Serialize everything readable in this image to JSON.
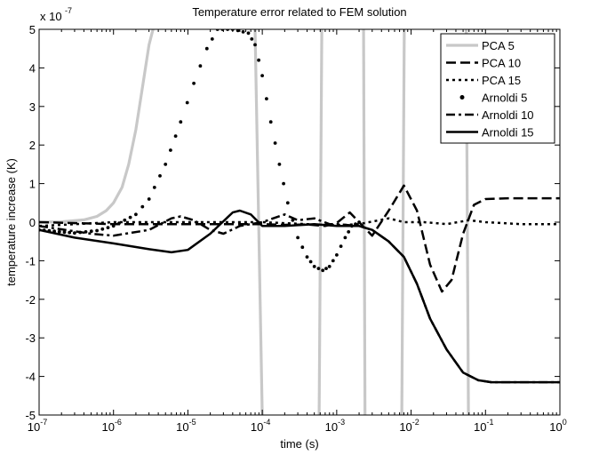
{
  "chart_data": {
    "type": "line",
    "title": "Temperature error related to FEM solution",
    "xlabel": "time (s)",
    "ylabel": "temperature increase (K)",
    "x_scale": "log",
    "xlim": [
      1e-07,
      1
    ],
    "ylim": [
      -5e-07,
      5e-07
    ],
    "y_exponent_label": "x 10",
    "y_exponent": "-7",
    "x_ticks": [
      {
        "base": "10",
        "exp": "-7",
        "value": 1e-07
      },
      {
        "base": "10",
        "exp": "-6",
        "value": 1e-06
      },
      {
        "base": "10",
        "exp": "-5",
        "value": 1e-05
      },
      {
        "base": "10",
        "exp": "-4",
        "value": 0.0001
      },
      {
        "base": "10",
        "exp": "-3",
        "value": 0.001
      },
      {
        "base": "10",
        "exp": "-2",
        "value": 0.01
      },
      {
        "base": "10",
        "exp": "-1",
        "value": 0.1
      },
      {
        "base": "10",
        "exp": "0",
        "value": 1
      }
    ],
    "y_ticks": [
      {
        "label": "5",
        "value": 5e-07
      },
      {
        "label": "4",
        "value": 4e-07
      },
      {
        "label": "3",
        "value": 3e-07
      },
      {
        "label": "2",
        "value": 2e-07
      },
      {
        "label": "1",
        "value": 1e-07
      },
      {
        "label": "0",
        "value": 0
      },
      {
        "label": "-1",
        "value": -1e-07
      },
      {
        "label": "-2",
        "value": -2e-07
      },
      {
        "label": "-3",
        "value": -3e-07
      },
      {
        "label": "-4",
        "value": -4e-07
      },
      {
        "label": "-5",
        "value": -5e-07
      }
    ],
    "grid": false,
    "legend_position": "top-right",
    "series": [
      {
        "name": "PCA 5",
        "style": "solid-light",
        "color": "#c8c8c8",
        "points": [
          [
            1e-07,
            0.0
          ],
          [
            2e-07,
            1e-09
          ],
          [
            4e-07,
            6e-09
          ],
          [
            6e-07,
            1.5e-08
          ],
          [
            8e-07,
            3e-08
          ],
          [
            1e-06,
            5e-08
          ],
          [
            1.3e-06,
            9e-08
          ],
          [
            1.6e-06,
            1.5e-07
          ],
          [
            2e-06,
            2.4e-07
          ],
          [
            2.5e-06,
            3.6e-07
          ],
          [
            3e-06,
            4.6e-07
          ],
          [
            3.4e-06,
            5e-07
          ],
          null,
          [
            8e-05,
            5e-07
          ],
          [
            0.0001,
            -5e-07
          ],
          null,
          [
            0.00058,
            -5e-07
          ],
          [
            0.00063,
            5e-07
          ],
          null,
          [
            0.0023,
            5e-07
          ],
          [
            0.0024,
            -5e-07
          ],
          null,
          [
            0.0075,
            -5e-07
          ],
          [
            0.0081,
            5e-07
          ],
          null,
          [
            0.055,
            5e-07
          ],
          [
            0.059,
            -5e-07
          ]
        ]
      },
      {
        "name": "PCA 10",
        "style": "dashed",
        "color": "#000000",
        "points": [
          [
            1e-07,
            0.0
          ],
          [
            1e-06,
            -5e-09
          ],
          [
            1e-05,
            -5e-09
          ],
          [
            5e-05,
            -5e-09
          ],
          [
            0.0001,
            -5e-09
          ],
          [
            0.0002,
            -7e-09
          ],
          [
            0.0004,
            -6e-09
          ],
          [
            0.0007,
            -1e-08
          ],
          [
            0.001,
            -2e-09
          ],
          [
            0.0015,
            2.5e-08
          ],
          [
            0.002,
            0.0
          ],
          [
            0.003,
            -3.5e-08
          ],
          [
            0.005,
            3e-08
          ],
          [
            0.008,
            9.5e-08
          ],
          [
            0.012,
            3e-08
          ],
          [
            0.018,
            -1.1e-07
          ],
          [
            0.026,
            -1.8e-07
          ],
          [
            0.035,
            -1.5e-07
          ],
          [
            0.05,
            -3e-08
          ],
          [
            0.07,
            4.5e-08
          ],
          [
            0.1,
            6e-08
          ],
          [
            0.2,
            6.2e-08
          ],
          [
            1,
            6.2e-08
          ]
        ]
      },
      {
        "name": "PCA 15",
        "style": "dotted",
        "color": "#000000",
        "points": [
          [
            1e-07,
            -1e-08
          ],
          [
            1e-06,
            0.0
          ],
          [
            1e-05,
            0.0
          ],
          [
            0.0001,
            0.0
          ],
          [
            0.0004,
            -5e-09
          ],
          [
            0.001,
            -8e-09
          ],
          [
            0.002,
            -5e-09
          ],
          [
            0.005,
            1e-08
          ],
          [
            0.008,
            0.0
          ],
          [
            0.015,
            0.0
          ],
          [
            0.03,
            -5e-09
          ],
          [
            0.06,
            5e-09
          ],
          [
            0.1,
            0.0
          ],
          [
            0.3,
            -5e-09
          ],
          [
            1,
            -5e-09
          ]
        ]
      },
      {
        "name": "Arnoldi 5",
        "style": "markers",
        "color": "#000000",
        "points": [
          [
            1e-07,
            -2e-08
          ],
          [
            3e-07,
            -2.8e-08
          ],
          [
            6e-07,
            -2.2e-08
          ],
          [
            1e-06,
            -1e-08
          ],
          [
            2e-06,
            2e-08
          ],
          [
            3e-06,
            6e-08
          ],
          [
            5e-06,
            1.5e-07
          ],
          [
            8e-06,
            2.6e-07
          ],
          [
            1.2e-05,
            3.6e-07
          ],
          [
            1.8e-05,
            4.5e-07
          ],
          [
            2.5e-05,
            5e-07
          ],
          [
            4e-05,
            5e-07
          ],
          [
            6.5e-05,
            4.9e-07
          ],
          [
            8e-05,
            4.6e-07
          ],
          [
            0.0001,
            3.8e-07
          ],
          [
            0.00013,
            2.6e-07
          ],
          [
            0.00017,
            1.5e-07
          ],
          [
            0.00022,
            5e-08
          ],
          [
            0.0003,
            -4e-08
          ],
          [
            0.0004,
            -9e-08
          ],
          [
            0.0005,
            -1.15e-07
          ],
          [
            0.00065,
            -1.25e-07
          ],
          [
            0.0008,
            -1.15e-07
          ],
          [
            0.001,
            -8.5e-08
          ],
          [
            0.0013,
            -4e-08
          ],
          [
            0.0016,
            -1e-08
          ],
          [
            0.002,
            0.0
          ]
        ]
      },
      {
        "name": "Arnoldi 10",
        "style": "dashdot",
        "color": "#000000",
        "points": [
          [
            1e-07,
            -1e-08
          ],
          [
            5e-07,
            -3e-08
          ],
          [
            1e-06,
            -3.5e-08
          ],
          [
            3e-06,
            -2e-08
          ],
          [
            6e-06,
            1e-08
          ],
          [
            8e-06,
            1.5e-08
          ],
          [
            1.2e-05,
            5e-09
          ],
          [
            2e-05,
            -2e-08
          ],
          [
            3e-05,
            -3e-08
          ],
          [
            5e-05,
            -1e-08
          ],
          [
            0.0001,
            0.0
          ],
          [
            0.0002,
            2e-08
          ],
          [
            0.0003,
            5e-09
          ],
          [
            0.0005,
            1e-08
          ],
          [
            0.0008,
            -5e-09
          ],
          [
            0.001,
            -5e-09
          ],
          [
            0.002,
            -1e-08
          ],
          [
            0.003,
            -2e-08
          ],
          [
            0.005,
            -5e-08
          ],
          [
            0.008,
            -9e-08
          ],
          [
            0.012,
            -1.6e-07
          ],
          [
            0.018,
            -2.5e-07
          ],
          [
            0.03,
            -3.3e-07
          ],
          [
            0.05,
            -3.9e-07
          ],
          [
            0.08,
            -4.1e-07
          ],
          [
            0.12,
            -4.15e-07
          ],
          [
            1,
            -4.15e-07
          ]
        ]
      },
      {
        "name": "Arnoldi 15",
        "style": "solid-thick",
        "color": "#000000",
        "points": [
          [
            1e-07,
            -2e-08
          ],
          [
            3e-07,
            -4e-08
          ],
          [
            1e-06,
            -5.5e-08
          ],
          [
            3e-06,
            -7e-08
          ],
          [
            6e-06,
            -7.8e-08
          ],
          [
            1e-05,
            -7.2e-08
          ],
          [
            2e-05,
            -3e-08
          ],
          [
            4e-05,
            2.5e-08
          ],
          [
            5e-05,
            3e-08
          ],
          [
            7e-05,
            2e-08
          ],
          [
            0.0001,
            -1e-08
          ],
          [
            0.0002,
            -1e-08
          ],
          [
            0.0005,
            -5e-09
          ],
          [
            0.001,
            -1e-08
          ],
          [
            0.002,
            -1e-08
          ],
          [
            0.003,
            -2e-08
          ],
          [
            0.005,
            -5e-08
          ],
          [
            0.008,
            -9e-08
          ],
          [
            0.012,
            -1.6e-07
          ],
          [
            0.018,
            -2.5e-07
          ],
          [
            0.03,
            -3.3e-07
          ],
          [
            0.05,
            -3.9e-07
          ],
          [
            0.08,
            -4.1e-07
          ],
          [
            0.12,
            -4.15e-07
          ],
          [
            1,
            -4.15e-07
          ]
        ]
      }
    ]
  }
}
